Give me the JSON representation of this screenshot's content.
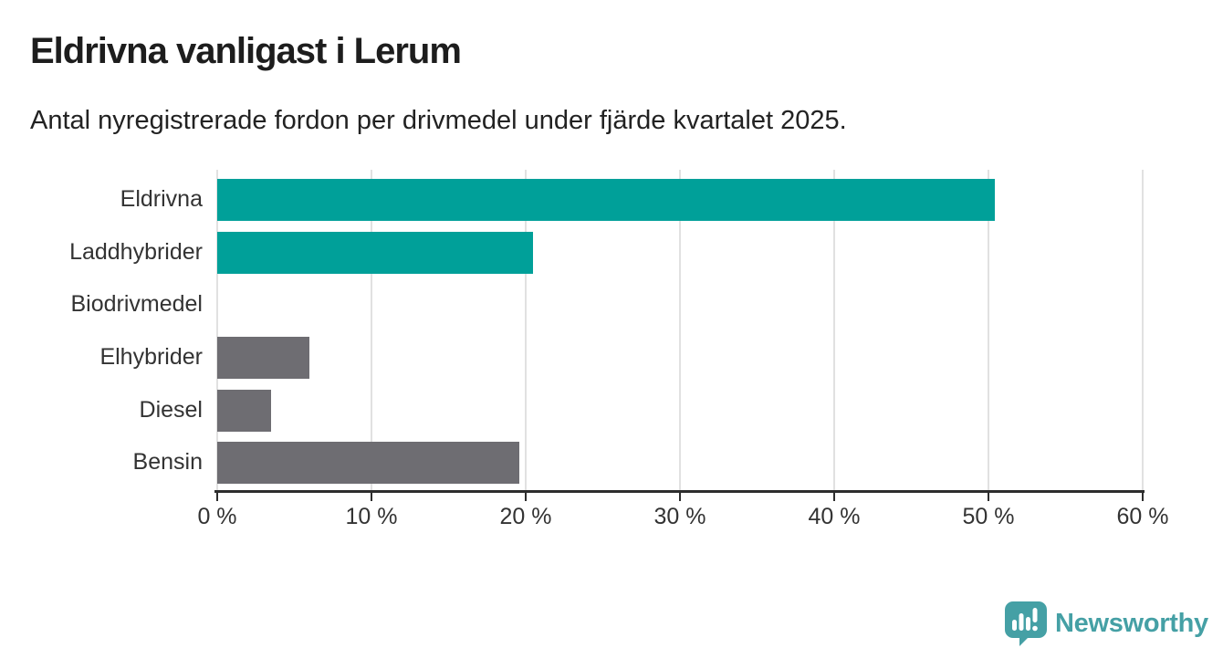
{
  "header": {
    "title": "Eldrivna vanligast i Lerum",
    "subtitle": "Antal nyregistrerade fordon per drivmedel under fjärde kvartalet 2025."
  },
  "chart_data": {
    "type": "bar",
    "orientation": "horizontal",
    "title": "Eldrivna vanligast i Lerum",
    "subtitle": "Antal nyregistrerade fordon per drivmedel under fjärde kvartalet 2025.",
    "categories": [
      "Eldrivna",
      "Laddhybrider",
      "Biodrivmedel",
      "Elhybrider",
      "Diesel",
      "Bensin"
    ],
    "values": [
      50.4,
      20.5,
      0,
      6.0,
      3.5,
      19.6
    ],
    "bar_colors": [
      "#00a099",
      "#00a099",
      "#00a099",
      "#6e6d72",
      "#6e6d72",
      "#6e6d72"
    ],
    "unit": "%",
    "xlabel": "",
    "ylabel": "",
    "xlim": [
      0,
      60
    ],
    "x_ticks": [
      0,
      10,
      20,
      30,
      40,
      50,
      60
    ],
    "x_tick_labels": [
      "0 %",
      "10 %",
      "20 %",
      "30 %",
      "40 %",
      "50 %",
      "60 %"
    ],
    "grid": "vertical",
    "legend": "none"
  },
  "colors": {
    "accent_teal": "#00a099",
    "neutral_gray": "#6e6d72",
    "brand_teal": "#45a0a5",
    "gridline": "#e1e1e1",
    "axis": "#2d2d2d"
  },
  "footer": {
    "brand": "Newsworthy"
  }
}
